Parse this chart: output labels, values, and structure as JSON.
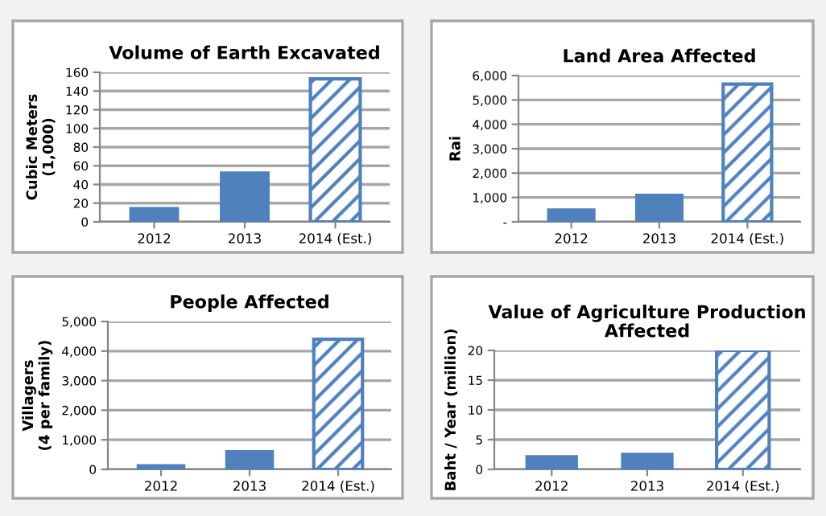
{
  "chart_data": [
    {
      "type": "bar",
      "title": "Volume of Earth Excavated",
      "ylabel": "Cubic Meters\n(1,000)",
      "categories": [
        "2012",
        "2013",
        "2014 (Est.)"
      ],
      "series": [
        {
          "color": "#4f81bd",
          "values": [
            16,
            54,
            null
          ]
        },
        {
          "color": "#4f81bd",
          "values": [
            null,
            null,
            153
          ]
        }
      ],
      "ylim": [
        0,
        160
      ],
      "yticks": [
        0,
        20,
        40,
        60,
        80,
        100,
        120,
        140,
        160
      ],
      "grid": "y"
    },
    {
      "type": "bar",
      "title": "Land Area Affected",
      "ylabel": "Rai",
      "categories": [
        "2012",
        "2013",
        "2014 (Est.)"
      ],
      "series": [
        {
          "color": "#4f81bd",
          "values": [
            550,
            1150,
            null
          ]
        },
        {
          "color": "#4f81bd",
          "values": [
            null,
            null,
            5650
          ]
        }
      ],
      "ylim": [
        0,
        6000
      ],
      "yticks": [
        {
          "value": 0,
          "label": "-"
        },
        {
          "value": 1000,
          "label": "1,000"
        },
        {
          "value": 2000,
          "label": "2,000"
        },
        {
          "value": 3000,
          "label": "3,000"
        },
        {
          "value": 4000,
          "label": "4,000"
        },
        {
          "value": 5000,
          "label": "5,000"
        },
        {
          "value": 6000,
          "label": "6,000"
        }
      ],
      "grid": "y"
    },
    {
      "type": "bar",
      "title": "People Affected",
      "ylabel": "Villagers\n(4 per family)",
      "categories": [
        "2012",
        "2013",
        "2014 (Est.)"
      ],
      "series": [
        {
          "color": "#4f81bd",
          "values": [
            180,
            650,
            null
          ]
        },
        {
          "color": "#4f81bd",
          "values": [
            null,
            null,
            4400
          ]
        }
      ],
      "ylim": [
        0,
        5000
      ],
      "yticks": [
        0,
        {
          "value": 1000,
          "label": "1,000"
        },
        {
          "value": 2000,
          "label": "2,000"
        },
        {
          "value": 3000,
          "label": "3,000"
        },
        {
          "value": 4000,
          "label": "4,000"
        },
        {
          "value": 5000,
          "label": "5,000"
        }
      ],
      "grid": "y"
    },
    {
      "type": "bar",
      "title": "Value of Agriculture Production\nAffected",
      "ylabel": "Baht / Year (million)",
      "categories": [
        "2012",
        "2013",
        "2014 (Est.)"
      ],
      "series": [
        {
          "color": "#4f81bd",
          "values": [
            2.4,
            2.8,
            null
          ]
        },
        {
          "color": "#4f81bd",
          "values": [
            null,
            null,
            20
          ]
        }
      ],
      "ylim": [
        0,
        20
      ],
      "yticks": [
        0,
        5,
        10,
        15,
        20
      ],
      "grid": "y"
    }
  ]
}
